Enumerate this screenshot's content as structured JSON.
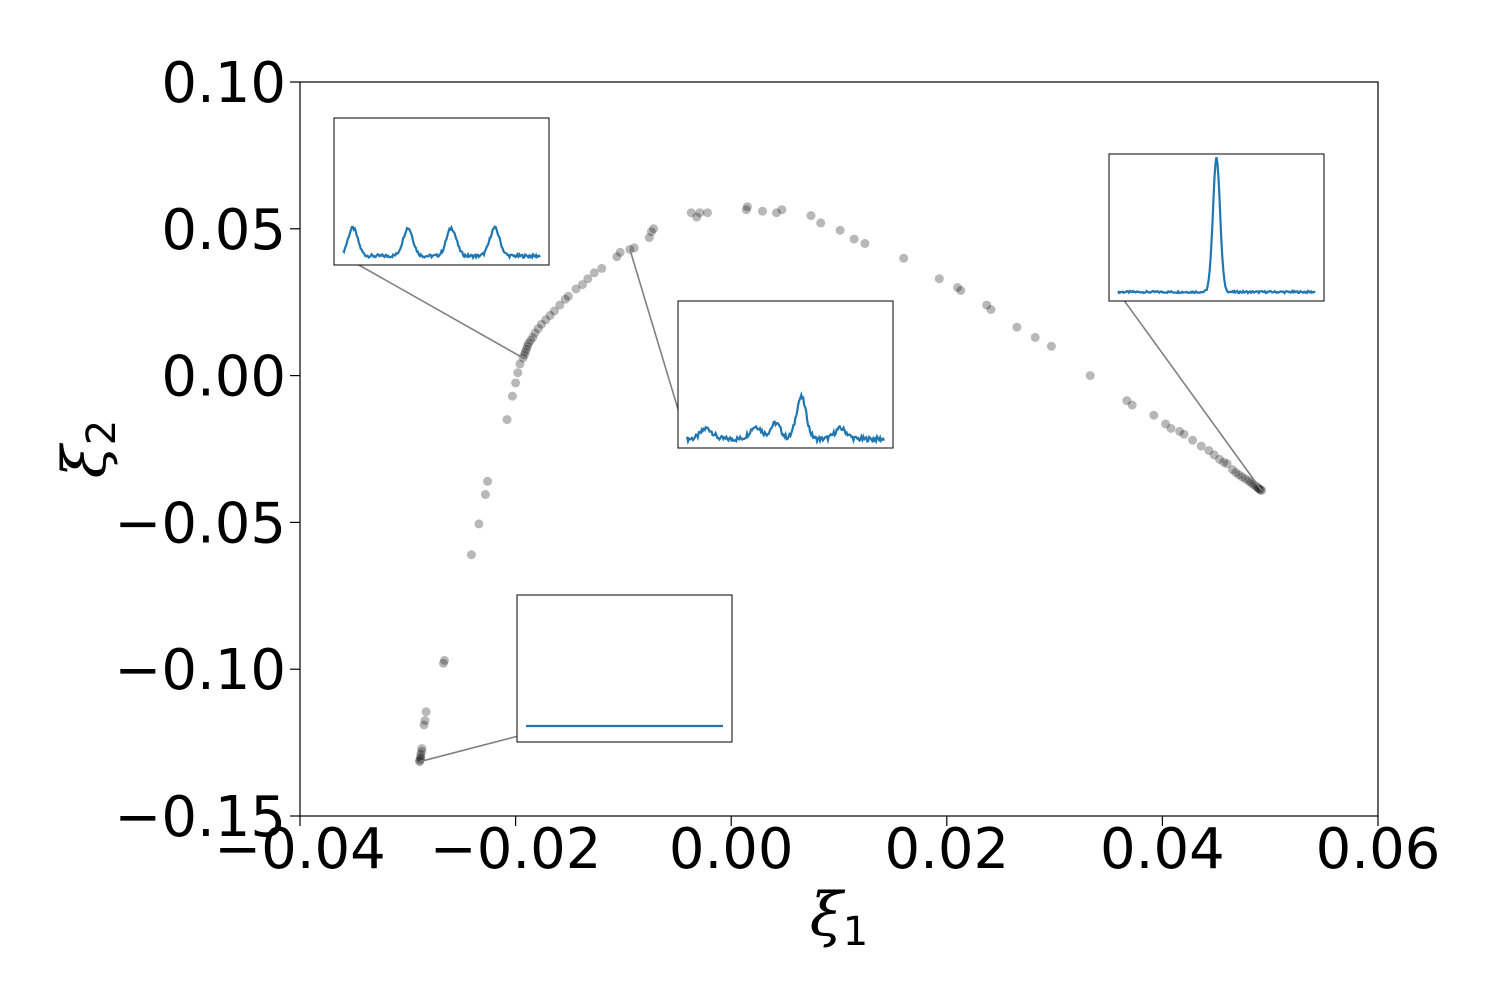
{
  "chart_data": {
    "type": "scatter",
    "title": "",
    "xlabel": "ξ",
    "xlabel_subscript": "1",
    "ylabel": "ξ",
    "ylabel_subscript": "2",
    "xlim": [
      -0.04,
      0.06
    ],
    "ylim": [
      -0.15,
      0.1
    ],
    "xticks": [
      {
        "value": -0.04,
        "label": "−0.04"
      },
      {
        "value": -0.02,
        "label": "−0.02"
      },
      {
        "value": 0.0,
        "label": "0.00"
      },
      {
        "value": 0.02,
        "label": "0.02"
      },
      {
        "value": 0.04,
        "label": "0.04"
      },
      {
        "value": 0.06,
        "label": "0.06"
      }
    ],
    "yticks": [
      {
        "value": -0.15,
        "label": "−0.15"
      },
      {
        "value": -0.1,
        "label": "−0.10"
      },
      {
        "value": -0.05,
        "label": "−0.05"
      },
      {
        "value": 0.0,
        "label": "0.00"
      },
      {
        "value": 0.05,
        "label": "0.05"
      },
      {
        "value": 0.1,
        "label": "0.10"
      }
    ],
    "grid": false,
    "point_color": "#000000",
    "point_opacity": 0.28,
    "inset_line_color": "#1f77b4",
    "leader_line_color": "#808080",
    "points": [
      [
        -0.0289,
        -0.1315
      ],
      [
        -0.0289,
        -0.131
      ],
      [
        -0.0288,
        -0.1305
      ],
      [
        -0.0288,
        -0.13
      ],
      [
        -0.0288,
        -0.129
      ],
      [
        -0.0287,
        -0.128
      ],
      [
        -0.0287,
        -0.127
      ],
      [
        -0.0285,
        -0.119
      ],
      [
        -0.0284,
        -0.1175
      ],
      [
        -0.0283,
        -0.1145
      ],
      [
        -0.0267,
        -0.098
      ],
      [
        -0.0266,
        -0.097
      ],
      [
        -0.0241,
        -0.061
      ],
      [
        -0.0234,
        -0.0505
      ],
      [
        -0.0228,
        -0.0405
      ],
      [
        -0.0226,
        -0.036
      ],
      [
        -0.0208,
        -0.015
      ],
      [
        -0.0203,
        -0.007
      ],
      [
        -0.02,
        -0.0025
      ],
      [
        -0.0198,
        0.001
      ],
      [
        -0.0196,
        0.004
      ],
      [
        -0.0193,
        0.006
      ],
      [
        -0.0192,
        0.007
      ],
      [
        -0.0191,
        0.008
      ],
      [
        -0.019,
        0.009
      ],
      [
        -0.0189,
        0.01
      ],
      [
        -0.0188,
        0.011
      ],
      [
        -0.0186,
        0.012
      ],
      [
        -0.0184,
        0.013
      ],
      [
        -0.0182,
        0.0145
      ],
      [
        -0.0179,
        0.016
      ],
      [
        -0.0176,
        0.0175
      ],
      [
        -0.0172,
        0.019
      ],
      [
        -0.0168,
        0.0205
      ],
      [
        -0.0164,
        0.022
      ],
      [
        -0.0159,
        0.024
      ],
      [
        -0.0154,
        0.026
      ],
      [
        -0.0151,
        0.027
      ],
      [
        -0.0144,
        0.0295
      ],
      [
        -0.0138,
        0.031
      ],
      [
        -0.0133,
        0.033
      ],
      [
        -0.0127,
        0.035
      ],
      [
        -0.012,
        0.0365
      ],
      [
        -0.0106,
        0.0405
      ],
      [
        -0.0103,
        0.042
      ],
      [
        -0.0094,
        0.043
      ],
      [
        -0.009,
        0.0435
      ],
      [
        -0.0076,
        0.047
      ],
      [
        -0.0074,
        0.049
      ],
      [
        -0.0072,
        0.05
      ],
      [
        -0.0037,
        0.0555
      ],
      [
        -0.0032,
        0.054
      ],
      [
        -0.0029,
        0.0555
      ],
      [
        -0.0022,
        0.0555
      ],
      [
        0.0014,
        0.0565
      ],
      [
        0.0015,
        0.0575
      ],
      [
        0.0029,
        0.056
      ],
      [
        0.0042,
        0.0555
      ],
      [
        0.0047,
        0.0565
      ],
      [
        0.0074,
        0.0545
      ],
      [
        0.0083,
        0.052
      ],
      [
        0.0101,
        0.0495
      ],
      [
        0.0114,
        0.0465
      ],
      [
        0.0124,
        0.045
      ],
      [
        0.016,
        0.04
      ],
      [
        0.0193,
        0.033
      ],
      [
        0.021,
        0.03
      ],
      [
        0.0213,
        0.029
      ],
      [
        0.0237,
        0.024
      ],
      [
        0.0241,
        0.0225
      ],
      [
        0.0265,
        0.0165
      ],
      [
        0.0282,
        0.013
      ],
      [
        0.0297,
        0.01
      ],
      [
        0.0333,
        0.0
      ],
      [
        0.0367,
        -0.0085
      ],
      [
        0.0372,
        -0.01
      ],
      [
        0.0392,
        -0.0135
      ],
      [
        0.0403,
        -0.0165
      ],
      [
        0.0408,
        -0.018
      ],
      [
        0.0416,
        -0.019
      ],
      [
        0.042,
        -0.02
      ],
      [
        0.0428,
        -0.022
      ],
      [
        0.0436,
        -0.024
      ],
      [
        0.0443,
        -0.0255
      ],
      [
        0.0448,
        -0.027
      ],
      [
        0.0453,
        -0.0285
      ],
      [
        0.0457,
        -0.0295
      ],
      [
        0.046,
        -0.03
      ],
      [
        0.0465,
        -0.032
      ],
      [
        0.0468,
        -0.033
      ],
      [
        0.0471,
        -0.0338
      ],
      [
        0.0474,
        -0.0345
      ],
      [
        0.0477,
        -0.0352
      ],
      [
        0.048,
        -0.0358
      ],
      [
        0.0482,
        -0.0364
      ],
      [
        0.0484,
        -0.037
      ],
      [
        0.0486,
        -0.0375
      ],
      [
        0.0488,
        -0.038
      ],
      [
        0.0489,
        -0.0384
      ],
      [
        0.049,
        -0.0387
      ],
      [
        0.0491,
        -0.0389
      ],
      [
        0.0492,
        -0.0391
      ]
    ],
    "insets": [
      {
        "name": "inset-periodic-peaks",
        "target": [
          -0.0193,
          0.006
        ],
        "attach": "bottom-left",
        "signal": "periodic"
      },
      {
        "name": "inset-irregular-peaks",
        "target": [
          -0.0094,
          0.043
        ],
        "attach": "bottom-left",
        "signal": "irregular"
      },
      {
        "name": "inset-single-peak",
        "target": [
          0.0492,
          -0.0391
        ],
        "attach": "bottom-left",
        "signal": "single"
      },
      {
        "name": "inset-flat-line",
        "target": [
          -0.0289,
          -0.1315
        ],
        "attach": "bottom-left",
        "signal": "flat"
      }
    ]
  }
}
